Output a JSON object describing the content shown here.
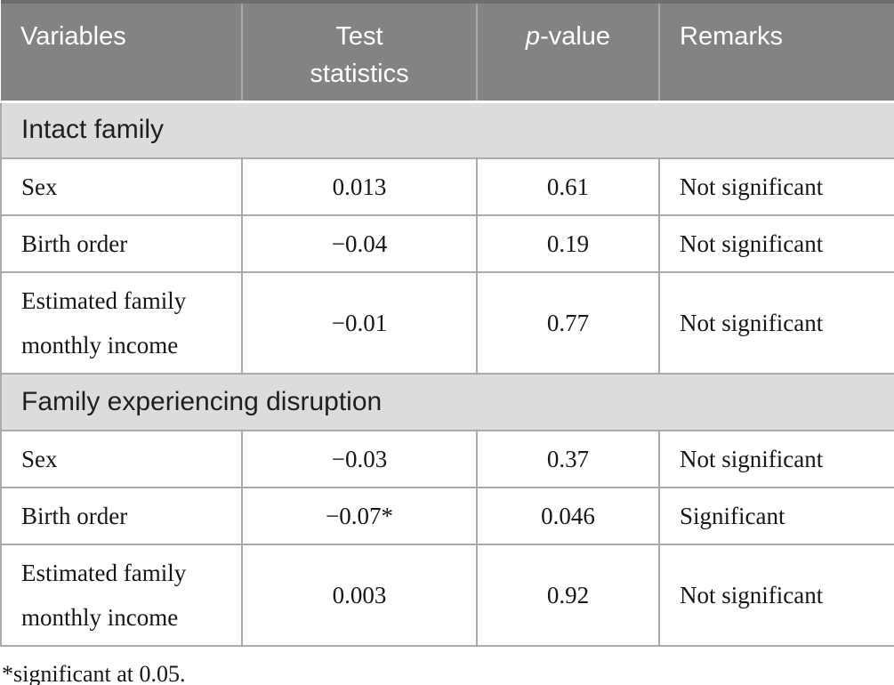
{
  "table": {
    "columns": [
      {
        "id": "variables",
        "label": "Variables",
        "align": "left"
      },
      {
        "id": "test-statistics",
        "label": "Test\nstatistics",
        "align": "center"
      },
      {
        "id": "p-value",
        "label_prefix_italic": "p",
        "label": "-value",
        "align": "center"
      },
      {
        "id": "remarks",
        "label": "Remarks",
        "align": "left"
      }
    ],
    "sections": [
      {
        "title": "Intact family",
        "rows": [
          {
            "variable": "Sex",
            "test_statistic": "0.013",
            "p_value": "0.61",
            "remark": "Not significant"
          },
          {
            "variable": "Birth order",
            "test_statistic": "−0.04",
            "p_value": "0.19",
            "remark": "Not significant"
          },
          {
            "variable": "Estimated family monthly income",
            "test_statistic": "−0.01",
            "p_value": "0.77",
            "remark": "Not significant"
          }
        ]
      },
      {
        "title": "Family experiencing disruption",
        "rows": [
          {
            "variable": "Sex",
            "test_statistic": "−0.03",
            "p_value": "0.37",
            "remark": "Not significant"
          },
          {
            "variable": "Birth order",
            "test_statistic": "−0.07*",
            "p_value": "0.046",
            "remark": "Significant"
          },
          {
            "variable": "Estimated family monthly income",
            "test_statistic": "0.003",
            "p_value": "0.92",
            "remark": "Not significant"
          }
        ]
      }
    ],
    "footnote": "*significant at 0.05."
  },
  "colors": {
    "header_bg": "#838383",
    "header_text": "#ffffff",
    "header_divider": "#a8a8a8",
    "header_top_edge": "#6e6e6e",
    "section_bg": "#dcdcdc",
    "section_text": "#1f1f1f",
    "grid_line": "#ababab",
    "body_text": "#161616",
    "page_bg": "#ffffff"
  }
}
